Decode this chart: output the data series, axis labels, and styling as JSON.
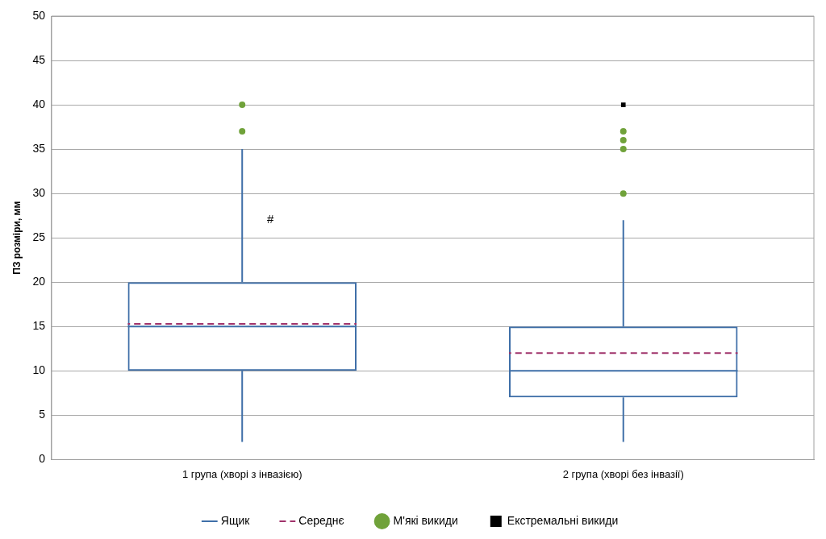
{
  "chart_data": {
    "type": "box",
    "ylabel": "ПЗ розміри, мм",
    "categories": [
      "1 група (хворі з інвазією)",
      "2 група (хворі без інвазії)"
    ],
    "series": [
      {
        "type": "box",
        "name": "Ящик",
        "color": "#3f6fa8",
        "boxes": [
          {
            "low": 2,
            "q1": 10,
            "median": 15,
            "q3": 20,
            "high": 35,
            "mean": 15.3
          },
          {
            "low": 2,
            "q1": 7,
            "median": 10,
            "q3": 15,
            "high": 27,
            "mean": 12
          }
        ]
      },
      {
        "type": "line",
        "name": "Середнє",
        "color": "#a0336b",
        "line_style": "dashed",
        "values": [
          null,
          null
        ]
      },
      {
        "type": "scatter",
        "name": "М'які викиди",
        "color": "#70a23a",
        "marker": "circle",
        "x": [
          "1 група (хворі з інвазією)",
          "1 група (хворі з інвазією)",
          "2 група (хворі без інвазії)",
          "2 група (хворі без інвазії)",
          "2 група (хворі без інвазії)",
          "2 група (хворі без інвазії)"
        ],
        "values": [
          40,
          37,
          30,
          35,
          36,
          37
        ]
      },
      {
        "type": "scatter",
        "name": "Екстремальні викиди",
        "color": "#000000",
        "marker": "square",
        "x": [
          "2 група (хворі без інвазії)"
        ],
        "values": [
          40
        ]
      }
    ],
    "ylim": [
      0,
      50
    ],
    "yticks": [
      0,
      5,
      10,
      15,
      20,
      25,
      30,
      35,
      40,
      45,
      50
    ],
    "grid": "y",
    "legend": "bottom",
    "annotations": [
      {
        "text": "#",
        "x": "1 група (хворі з інвазією)",
        "y": 27
      }
    ]
  }
}
